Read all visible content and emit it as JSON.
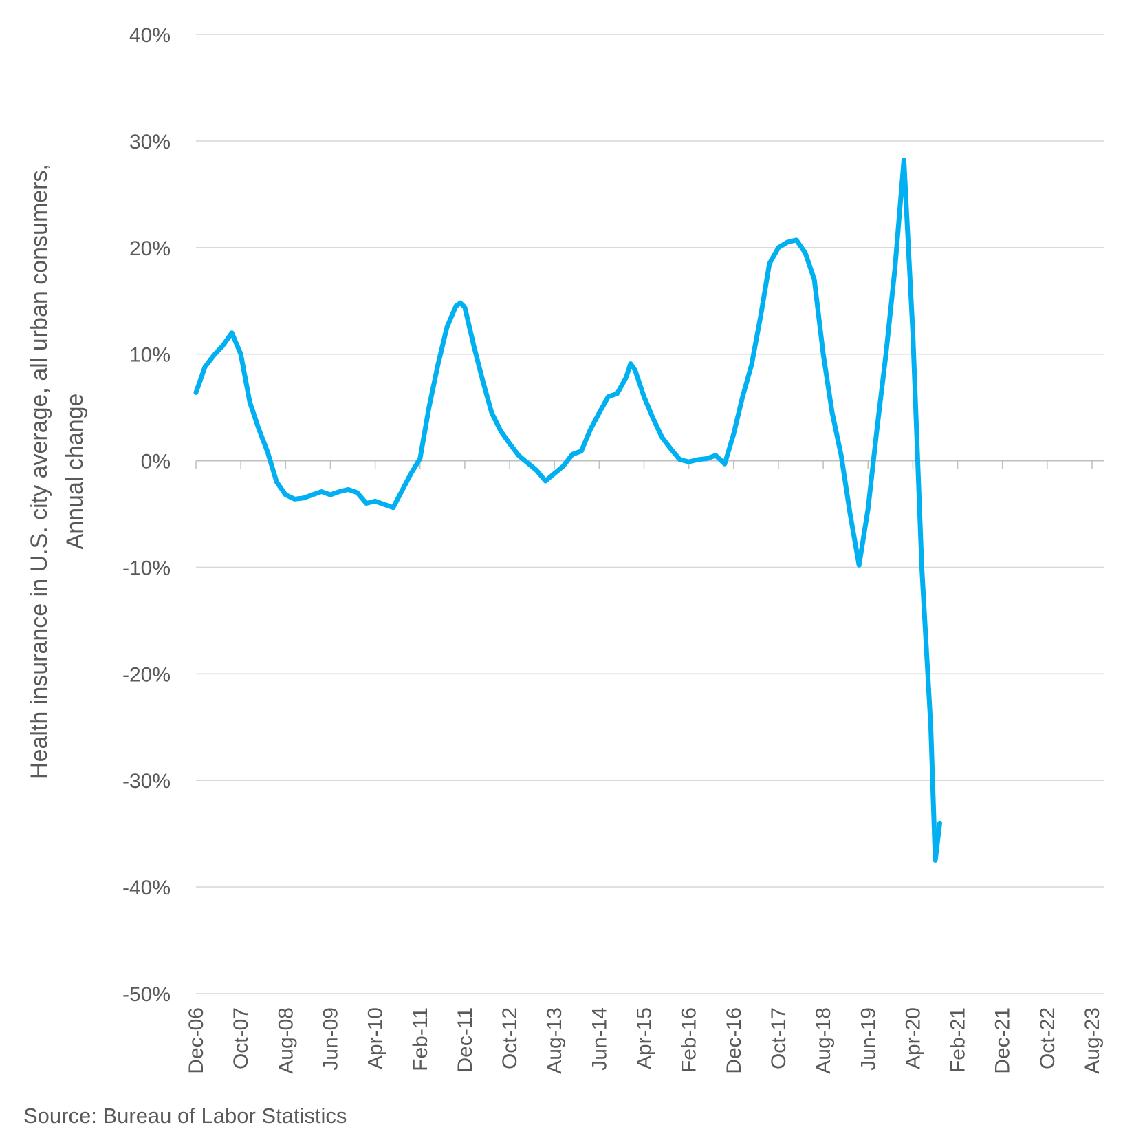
{
  "chart_data": {
    "type": "line",
    "title": "",
    "ylabel_line1": "Health insurance in U.S. city average, all urban consumers,",
    "ylabel_line2": "Annual change",
    "xlabel": "",
    "ylim": [
      -50,
      40
    ],
    "y_ticks": [
      40,
      30,
      20,
      10,
      0,
      -10,
      -20,
      -30,
      -40,
      -50
    ],
    "y_tick_labels": [
      "40%",
      "30%",
      "20%",
      "10%",
      "0%",
      "-10%",
      "-20%",
      "-30%",
      "-40%",
      "-50%"
    ],
    "x_tick_labels": [
      "Dec-06",
      "Oct-07",
      "Aug-08",
      "Jun-09",
      "Apr-10",
      "Feb-11",
      "Dec-11",
      "Oct-12",
      "Aug-13",
      "Jun-14",
      "Apr-15",
      "Feb-16",
      "Dec-16",
      "Oct-17",
      "Aug-18",
      "Jun-19",
      "Apr-20",
      "Feb-21",
      "Dec-21",
      "Oct-22",
      "Aug-23"
    ],
    "grid": true,
    "line_color": "#00b0f0",
    "series": [
      {
        "points": [
          [
            "Dec-06",
            6.4
          ],
          [
            "Feb-07",
            8.8
          ],
          [
            "Apr-07",
            9.9
          ],
          [
            "Jun-07",
            10.8
          ],
          [
            "Aug-07",
            12.0
          ],
          [
            "Oct-07",
            10.0
          ],
          [
            "Dec-07",
            5.5
          ],
          [
            "Feb-08",
            3.0
          ],
          [
            "Apr-08",
            0.8
          ],
          [
            "Jun-08",
            -2.0
          ],
          [
            "Aug-08",
            -3.2
          ],
          [
            "Oct-08",
            -3.6
          ],
          [
            "Dec-08",
            -3.5
          ],
          [
            "Feb-09",
            -3.2
          ],
          [
            "Apr-09",
            -2.9
          ],
          [
            "Jun-09",
            -3.2
          ],
          [
            "Aug-09",
            -2.9
          ],
          [
            "Oct-09",
            -2.7
          ],
          [
            "Dec-09",
            -3.0
          ],
          [
            "Feb-10",
            -4.0
          ],
          [
            "Apr-10",
            -3.8
          ],
          [
            "Jun-10",
            -4.1
          ],
          [
            "Aug-10",
            -4.4
          ],
          [
            "Oct-10",
            -2.8
          ],
          [
            "Dec-10",
            -1.2
          ],
          [
            "Feb-11",
            0.2
          ],
          [
            "Apr-11",
            5.0
          ],
          [
            "Jun-11",
            9.0
          ],
          [
            "Aug-11",
            12.5
          ],
          [
            "Oct-11",
            14.5
          ],
          [
            "Nov-11",
            14.8
          ],
          [
            "Dec-11",
            14.4
          ],
          [
            "Feb-12",
            10.8
          ],
          [
            "Apr-12",
            7.5
          ],
          [
            "Jun-12",
            4.5
          ],
          [
            "Aug-12",
            2.8
          ],
          [
            "Oct-12",
            1.6
          ],
          [
            "Dec-12",
            0.5
          ],
          [
            "Feb-13",
            -0.2
          ],
          [
            "Apr-13",
            -0.9
          ],
          [
            "Jun-13",
            -1.9
          ],
          [
            "Aug-13",
            -1.2
          ],
          [
            "Oct-13",
            -0.5
          ],
          [
            "Dec-13",
            0.6
          ],
          [
            "Feb-14",
            0.9
          ],
          [
            "Apr-14",
            2.9
          ],
          [
            "Jun-14",
            4.5
          ],
          [
            "Aug-14",
            6.0
          ],
          [
            "Oct-14",
            6.3
          ],
          [
            "Dec-14",
            7.8
          ],
          [
            "Jan-15",
            9.1
          ],
          [
            "Feb-15",
            8.5
          ],
          [
            "Apr-15",
            6.0
          ],
          [
            "Jun-15",
            4.0
          ],
          [
            "Aug-15",
            2.2
          ],
          [
            "Oct-15",
            1.1
          ],
          [
            "Dec-15",
            0.1
          ],
          [
            "Feb-16",
            -0.1
          ],
          [
            "Apr-16",
            0.1
          ],
          [
            "Jun-16",
            0.2
          ],
          [
            "Aug-16",
            0.5
          ],
          [
            "Oct-16",
            -0.3
          ],
          [
            "Dec-16",
            2.5
          ],
          [
            "Feb-17",
            6.0
          ],
          [
            "Apr-17",
            9.0
          ],
          [
            "Jun-17",
            13.5
          ],
          [
            "Aug-17",
            18.5
          ],
          [
            "Oct-17",
            20.0
          ],
          [
            "Dec-17",
            20.5
          ],
          [
            "Feb-18",
            20.7
          ],
          [
            "Apr-18",
            19.5
          ],
          [
            "Jun-18",
            17.0
          ],
          [
            "Aug-18",
            10.0
          ],
          [
            "Oct-18",
            4.5
          ],
          [
            "Dec-18",
            0.5
          ],
          [
            "Feb-19",
            -5.0
          ],
          [
            "Apr-19",
            -9.8
          ],
          [
            "Jun-19",
            -4.5
          ],
          [
            "Aug-19",
            3.0
          ],
          [
            "Oct-19",
            10.0
          ],
          [
            "Dec-19",
            18.0
          ],
          [
            "Feb-20",
            28.2
          ],
          [
            "Apr-20",
            12.0
          ],
          [
            "Jun-20",
            -10.0
          ],
          [
            "Aug-20",
            -25.0
          ],
          [
            "Sep-20",
            -37.5
          ],
          [
            "Oct-20",
            -34.0
          ]
        ]
      }
    ]
  },
  "source_text": "Source: Bureau of Labor Statistics"
}
